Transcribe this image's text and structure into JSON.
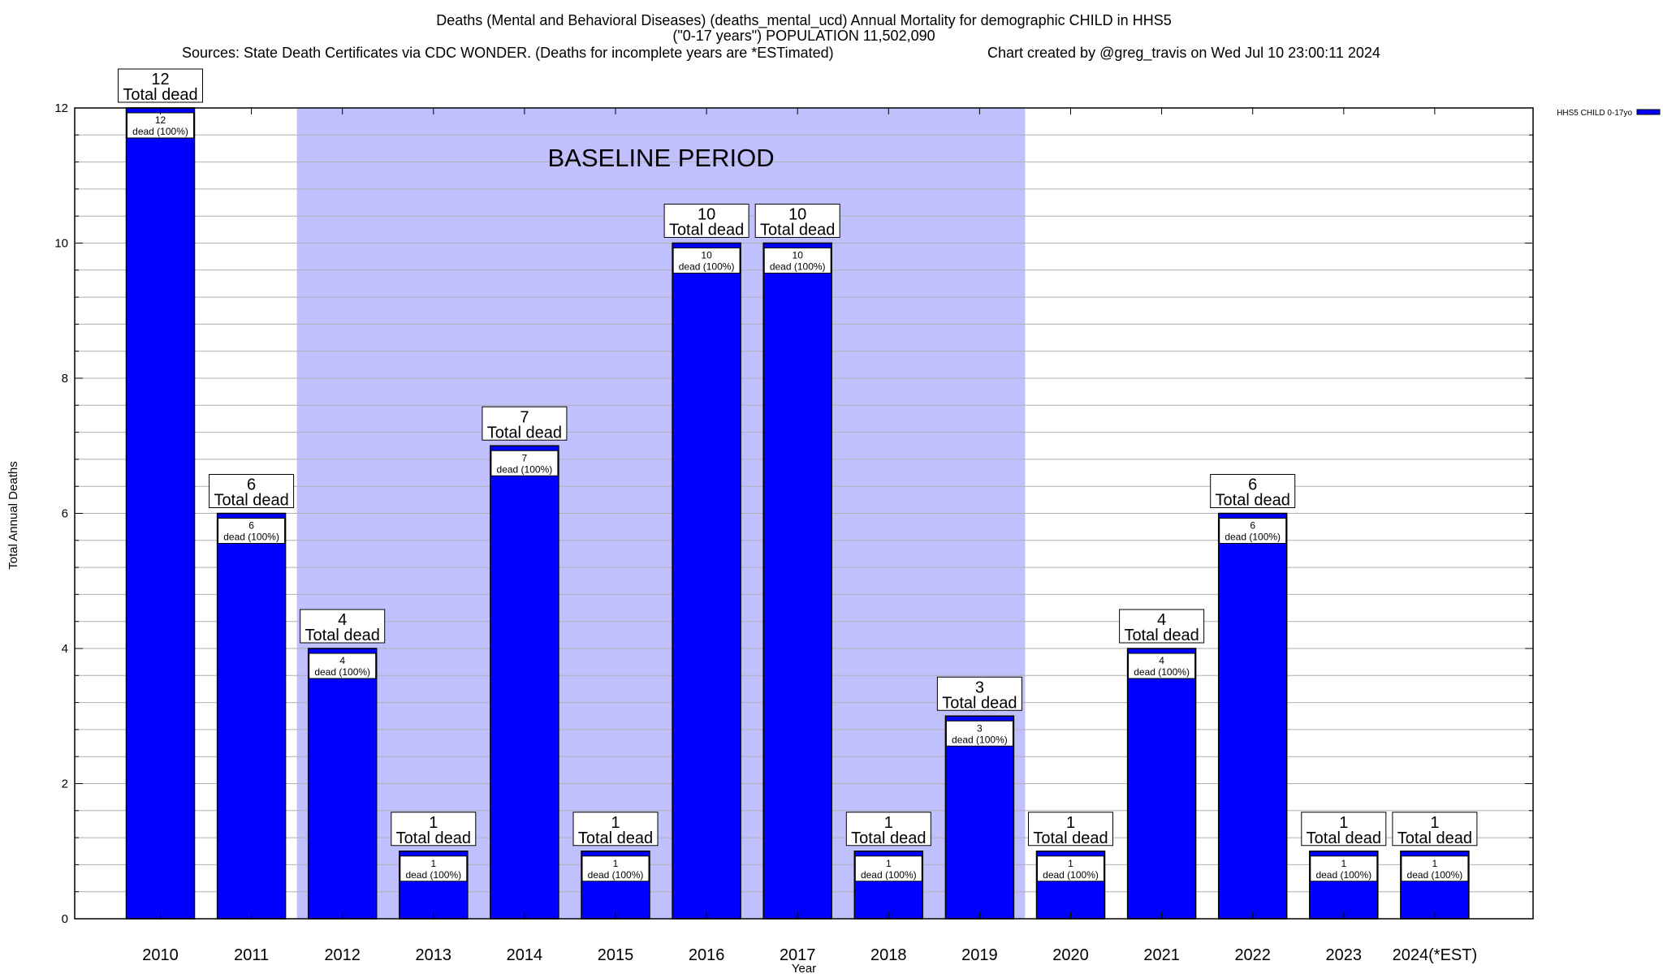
{
  "chart_data": {
    "type": "bar",
    "title_lines": [
      "Deaths (Mental and Behavioral Diseases) (deaths_mental_ucd) Annual Mortality for demographic CHILD in HHS5",
      "(\"0-17 years\") POPULATION 11,502,090"
    ],
    "subtitle_left": "Sources: State Death Certificates via CDC WONDER. (Deaths for incomplete years are *ESTimated)",
    "subtitle_right": "Chart created by @greg_travis on Wed Jul 10 23:00:11 2024",
    "xlabel": "Year",
    "ylabel": "Total Annual Deaths",
    "ylim": [
      0,
      12
    ],
    "yticks": [
      0,
      2,
      4,
      6,
      8,
      10,
      12
    ],
    "minor_grid_step": 0.4,
    "grid": true,
    "categories": [
      "2010",
      "2011",
      "2012",
      "2013",
      "2014",
      "2015",
      "2016",
      "2017",
      "2018",
      "2019",
      "2020",
      "2021",
      "2022",
      "2023",
      "2024(*EST)"
    ],
    "series": [
      {
        "name": "HHS5 CHILD 0-17yo",
        "color": "#0000ff",
        "values": [
          12,
          6,
          4,
          1,
          7,
          1,
          10,
          10,
          1,
          3,
          1,
          4,
          6,
          1,
          1
        ]
      }
    ],
    "top_label_suffix": "Total dead",
    "inner_label_suffix": "dead (100%)",
    "baseline_period": {
      "label": "BASELINE PERIOD",
      "from": "2012",
      "to": "2019",
      "color": "#c0c0ff"
    },
    "legend_placement": "top-right"
  }
}
